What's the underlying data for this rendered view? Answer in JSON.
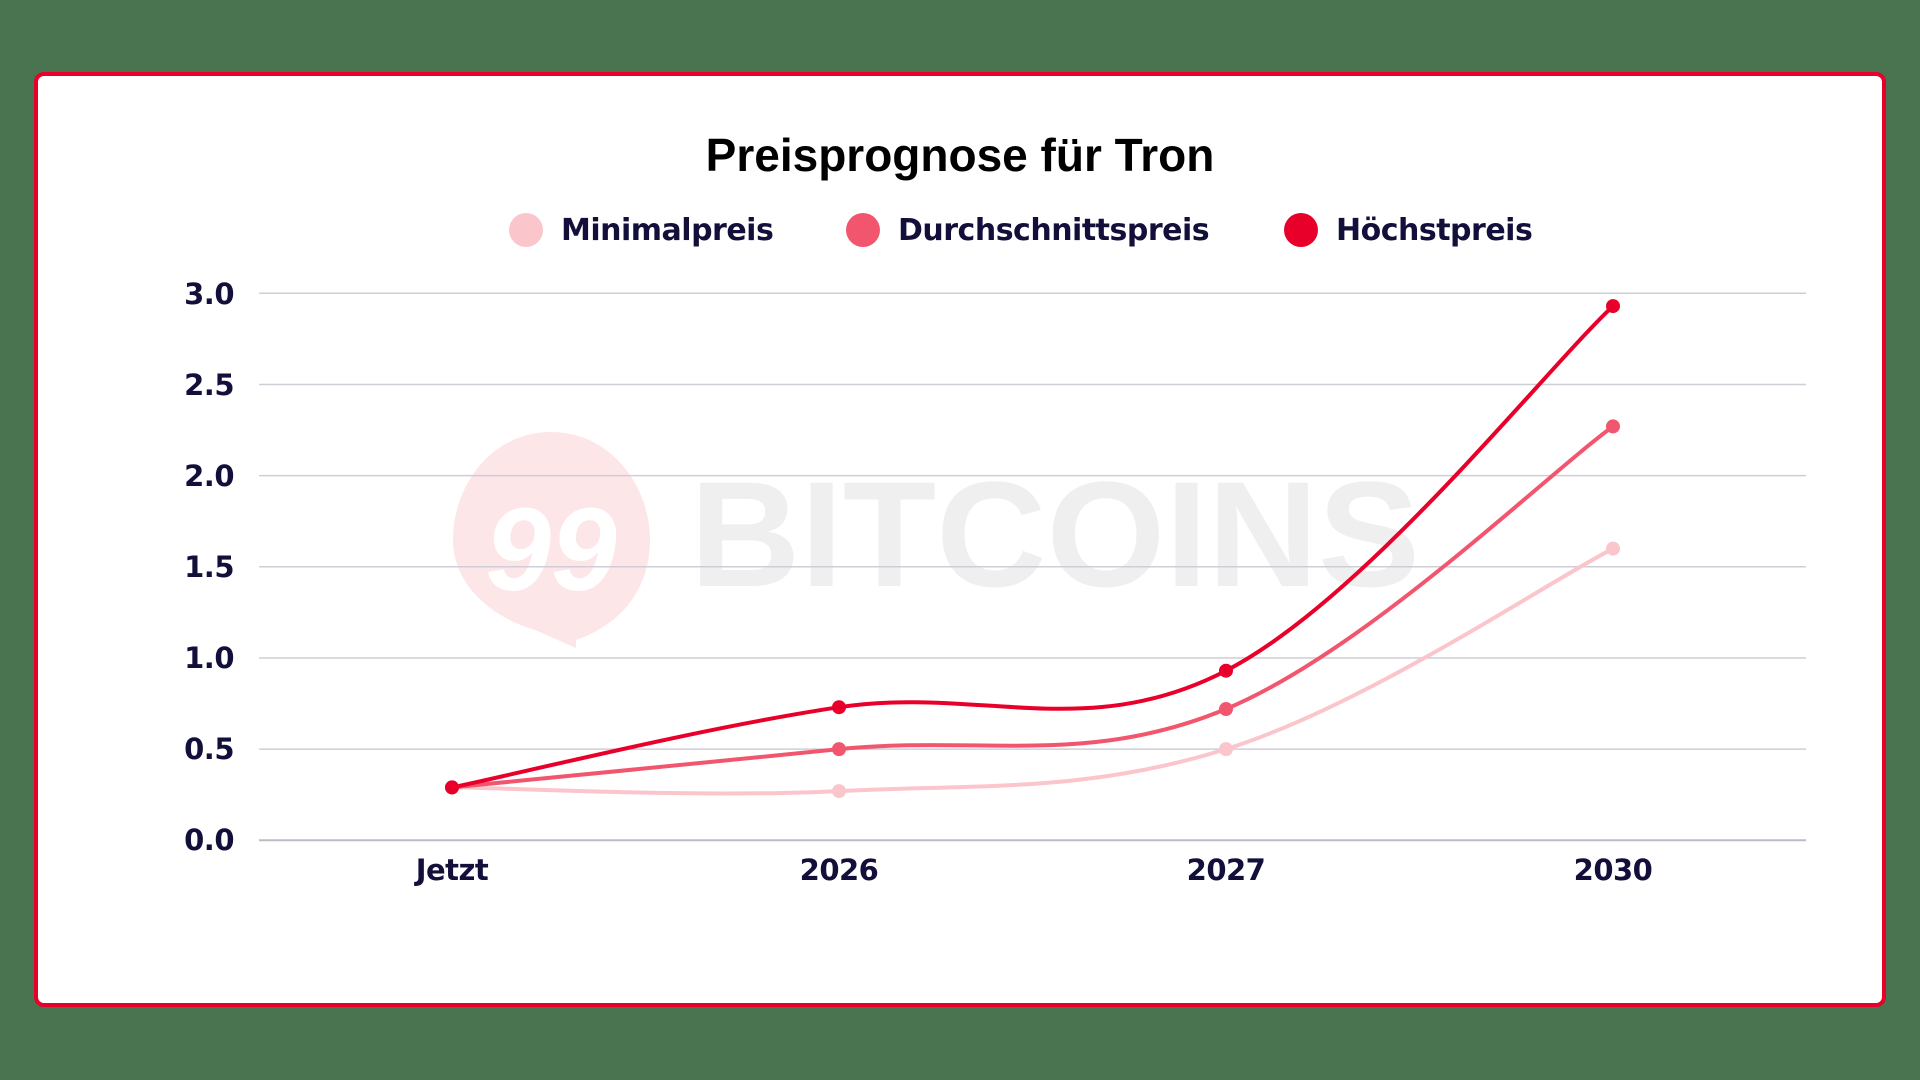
{
  "frame": {
    "border_color": "#e8002a",
    "background": "#ffffff",
    "page_background": "#4a7350"
  },
  "watermark": {
    "badge_text": "99",
    "brand_text": "BITCOINS",
    "badge_color": "#fde6e8",
    "text_color": "#eeeeee"
  },
  "colors": {
    "Minimalpreis": "#fbc5cc",
    "Durchschnittspreis": "#f2566e",
    "Höchstpreis": "#e8002a",
    "text": "#12103a",
    "grid": "#cfcdd6"
  },
  "chart_data": {
    "type": "line",
    "title": "Preisprognose für Tron",
    "xlabel": "",
    "ylabel": "",
    "categories": [
      "Jetzt",
      "2026",
      "2027",
      "2030"
    ],
    "series": [
      {
        "name": "Minimalpreis",
        "color": "#fbc5cc",
        "values": [
          0.29,
          0.27,
          0.5,
          1.6
        ]
      },
      {
        "name": "Durchschnittspreis",
        "color": "#f2566e",
        "values": [
          0.29,
          0.5,
          0.72,
          2.27
        ]
      },
      {
        "name": "Höchstpreis",
        "color": "#e8002a",
        "values": [
          0.29,
          0.73,
          0.93,
          2.93
        ]
      }
    ],
    "ylim": [
      0,
      3.0
    ],
    "yticks": [
      "0.0",
      "0.5",
      "1.0",
      "1.5",
      "2.0",
      "2.5",
      "3.0"
    ],
    "grid": true,
    "legend_position": "top",
    "smooth": true
  }
}
